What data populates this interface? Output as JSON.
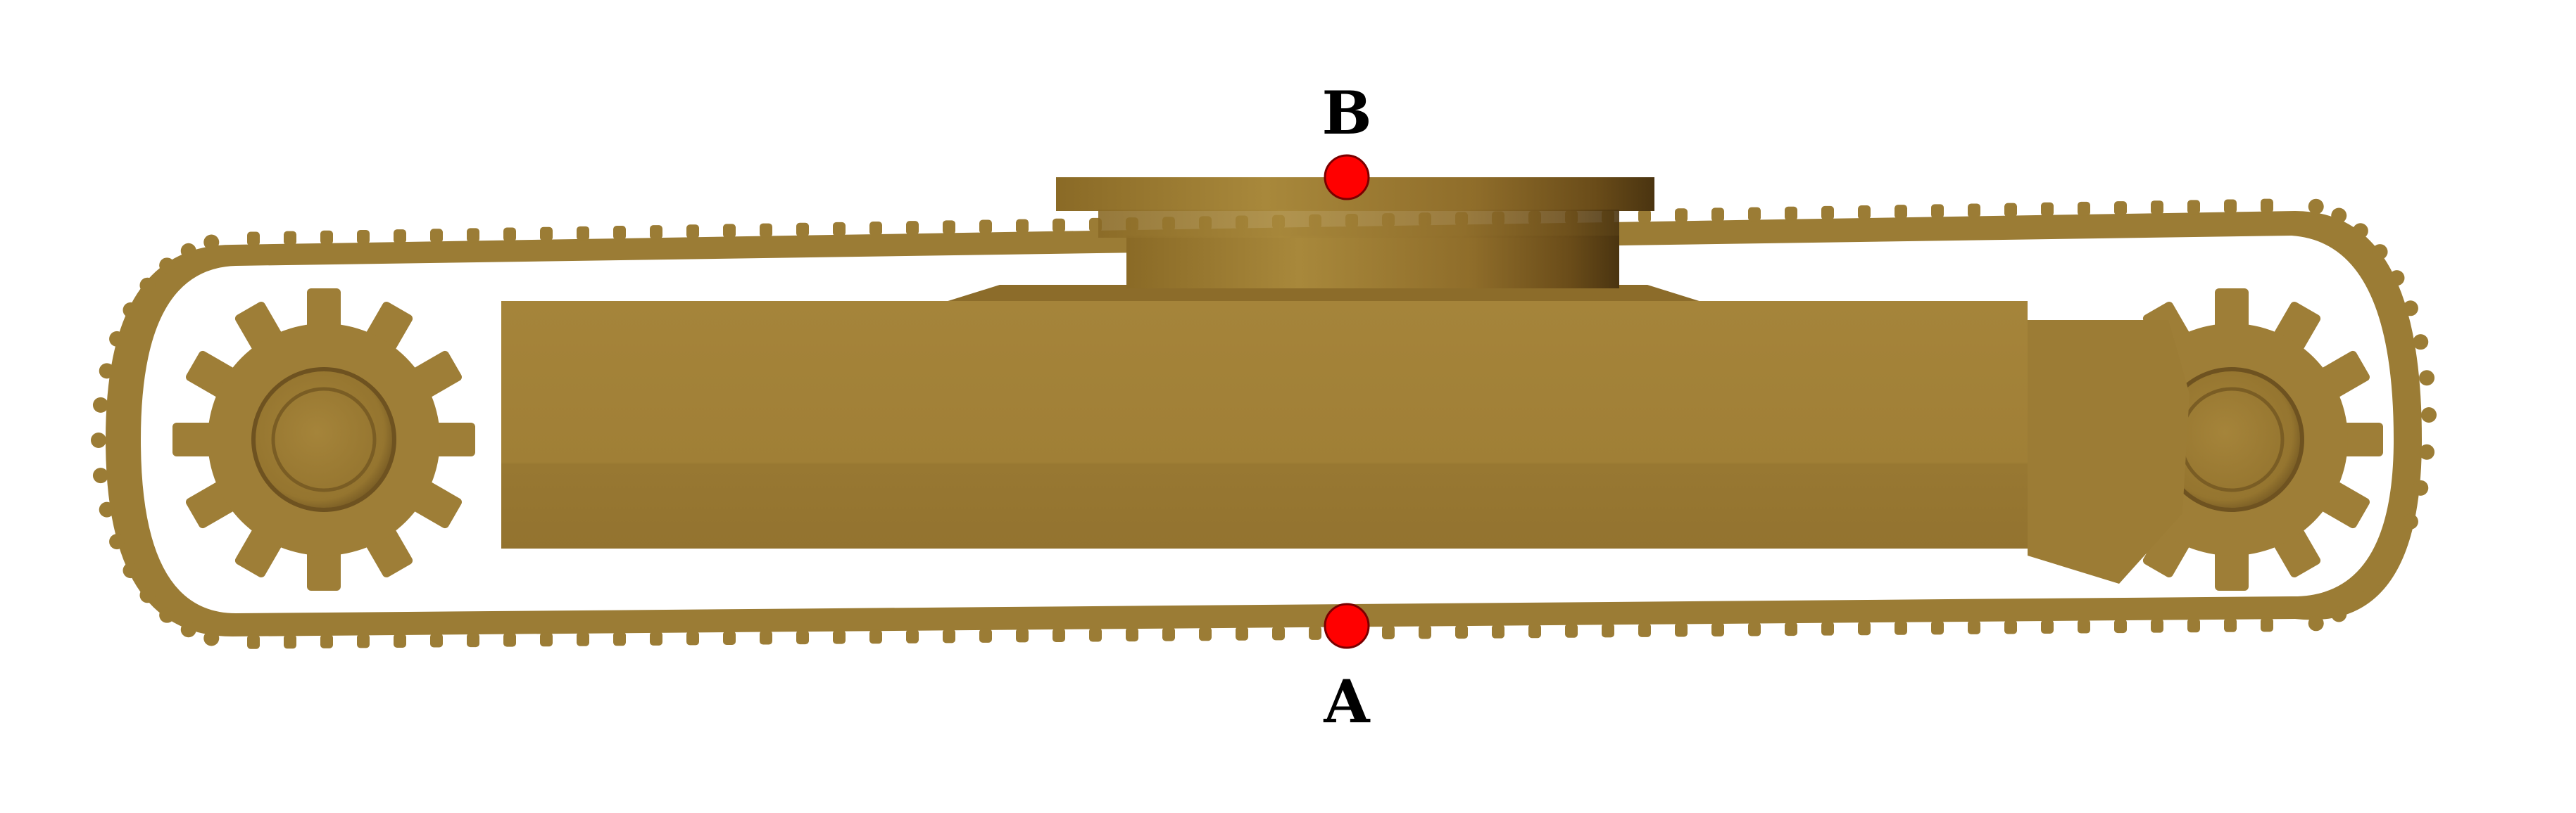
{
  "points": [
    {
      "id": "B",
      "label": "B",
      "color": "#ff0000"
    },
    {
      "id": "A",
      "label": "A",
      "color": "#ff0000"
    }
  ],
  "colors": {
    "track": "#9b7c35",
    "track_dark": "#7a5f22",
    "body": "#a07e36",
    "body_shadow": "#8e6e2c",
    "top_block": "#a58438",
    "top_block_dark": "#5a3f14",
    "point_stroke": "#7a0000"
  }
}
